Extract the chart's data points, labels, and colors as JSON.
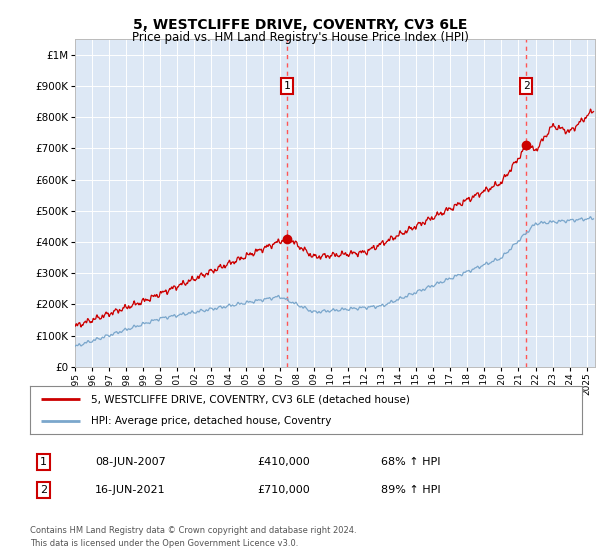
{
  "title": "5, WESTCLIFFE DRIVE, COVENTRY, CV3 6LE",
  "subtitle": "Price paid vs. HM Land Registry's House Price Index (HPI)",
  "background_color": "#ffffff",
  "plot_bg_color": "#dde8f5",
  "ylabel_ticks": [
    "£0",
    "£100K",
    "£200K",
    "£300K",
    "£400K",
    "£500K",
    "£600K",
    "£700K",
    "£800K",
    "£900K",
    "£1M"
  ],
  "ytick_values": [
    0,
    100000,
    200000,
    300000,
    400000,
    500000,
    600000,
    700000,
    800000,
    900000,
    1000000
  ],
  "ylim": [
    0,
    1050000
  ],
  "xlim_start": 1995.0,
  "xlim_end": 2025.5,
  "xtick_years": [
    1995,
    1996,
    1997,
    1998,
    1999,
    2000,
    2001,
    2002,
    2003,
    2004,
    2005,
    2006,
    2007,
    2008,
    2009,
    2010,
    2011,
    2012,
    2013,
    2014,
    2015,
    2016,
    2017,
    2018,
    2019,
    2020,
    2021,
    2022,
    2023,
    2024,
    2025
  ],
  "sale1_x": 2007.44,
  "sale1_y": 410000,
  "sale1_label": "1",
  "sale1_date": "08-JUN-2007",
  "sale1_price": "£410,000",
  "sale1_hpi": "68% ↑ HPI",
  "sale2_x": 2021.46,
  "sale2_y": 710000,
  "sale2_label": "2",
  "sale2_date": "16-JUN-2021",
  "sale2_price": "£710,000",
  "sale2_hpi": "89% ↑ HPI",
  "red_line_color": "#cc0000",
  "blue_line_color": "#7ba7cc",
  "sale_marker_color": "#cc0000",
  "vline_color": "#ff5555",
  "legend_label_red": "5, WESTCLIFFE DRIVE, COVENTRY, CV3 6LE (detached house)",
  "legend_label_blue": "HPI: Average price, detached house, Coventry",
  "footer_text": "Contains HM Land Registry data © Crown copyright and database right 2024.\nThis data is licensed under the Open Government Licence v3.0."
}
